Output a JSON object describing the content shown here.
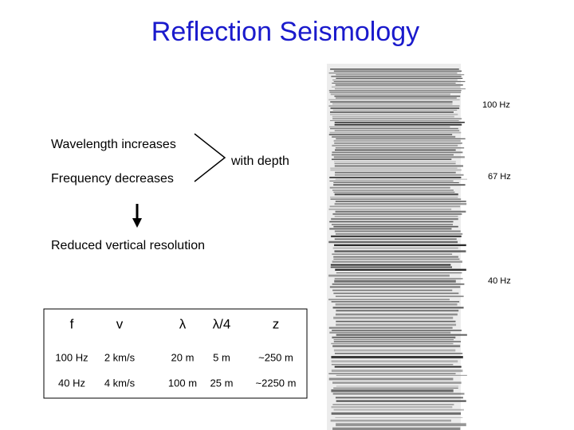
{
  "title": "Reflection Seismology",
  "notes": {
    "wavelength": "Wavelength increases",
    "frequency": "Frequency decreases",
    "depth": "with depth",
    "resolution": "Reduced vertical resolution"
  },
  "table": {
    "header": [
      "f",
      "v",
      "λ",
      "λ/4",
      "z"
    ],
    "rows": [
      [
        "100 Hz",
        "2 km/s",
        "20 m",
        "5 m",
        "~250 m"
      ],
      [
        "40 Hz",
        "4 km/s",
        "100 m",
        "25 m",
        "~2250 m"
      ]
    ]
  },
  "section_labels": [
    "100 Hz",
    "67 Hz",
    "40 Hz"
  ]
}
